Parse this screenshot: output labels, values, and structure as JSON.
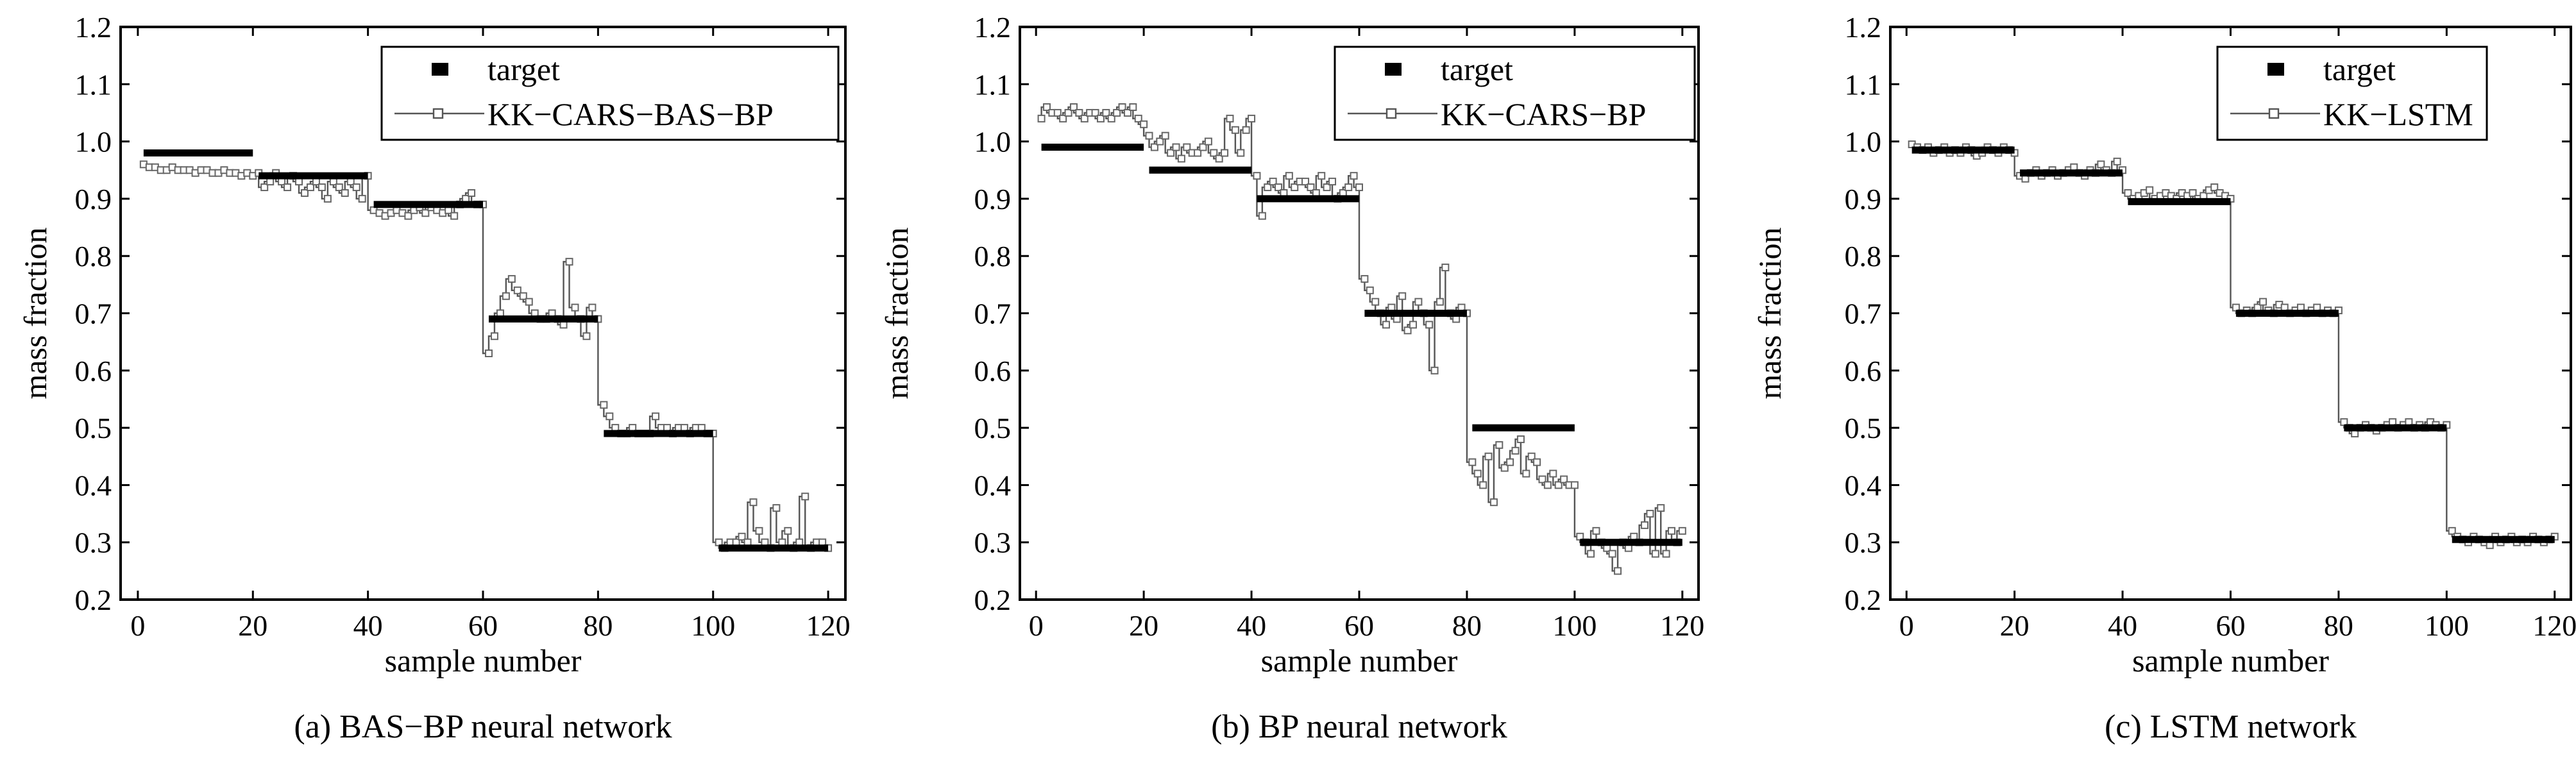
{
  "chart_data": [
    {
      "type": "line",
      "caption": "(a) BAS−BP neural network",
      "xlabel": "sample number",
      "ylabel": "mass fraction",
      "xlim": [
        -3,
        123
      ],
      "ylim": [
        0.2,
        1.2
      ],
      "x_ticks": [
        "0",
        "20",
        "40",
        "60",
        "80",
        "100",
        "120"
      ],
      "y_ticks": [
        "0.2",
        "0.3",
        "0.4",
        "0.5",
        "0.6",
        "0.7",
        "0.8",
        "0.9",
        "1.0",
        "1.1",
        "1.2"
      ],
      "legend_position": "top-right",
      "grid": false,
      "series": [
        {
          "name": "target",
          "style": "thick-segments",
          "segments": [
            {
              "x": [
                1,
                20
              ],
              "y": 0.98
            },
            {
              "x": [
                21,
                40
              ],
              "y": 0.94
            },
            {
              "x": [
                41,
                60
              ],
              "y": 0.89
            },
            {
              "x": [
                61,
                80
              ],
              "y": 0.69
            },
            {
              "x": [
                81,
                100
              ],
              "y": 0.49
            },
            {
              "x": [
                101,
                120
              ],
              "y": 0.29
            }
          ]
        },
        {
          "name": "KK−CARS−BAS−BP",
          "style": "line-open-square",
          "x_start": 1,
          "y": [
            0.96,
            0.955,
            0.955,
            0.95,
            0.95,
            0.955,
            0.95,
            0.95,
            0.95,
            0.945,
            0.95,
            0.95,
            0.945,
            0.945,
            0.95,
            0.945,
            0.945,
            0.94,
            0.945,
            0.94,
            0.945,
            0.92,
            0.93,
            0.945,
            0.93,
            0.92,
            0.94,
            0.93,
            0.91,
            0.92,
            0.93,
            0.92,
            0.9,
            0.93,
            0.92,
            0.91,
            0.93,
            0.92,
            0.9,
            0.94,
            0.88,
            0.875,
            0.87,
            0.875,
            0.88,
            0.875,
            0.87,
            0.88,
            0.885,
            0.875,
            0.885,
            0.88,
            0.875,
            0.88,
            0.87,
            0.89,
            0.9,
            0.91,
            0.89,
            0.89,
            0.63,
            0.66,
            0.7,
            0.73,
            0.76,
            0.74,
            0.73,
            0.72,
            0.7,
            0.69,
            0.69,
            0.7,
            0.69,
            0.68,
            0.79,
            0.71,
            0.69,
            0.66,
            0.71,
            0.69,
            0.54,
            0.52,
            0.5,
            0.49,
            0.49,
            0.5,
            0.49,
            0.49,
            0.49,
            0.52,
            0.5,
            0.5,
            0.49,
            0.5,
            0.5,
            0.49,
            0.5,
            0.5,
            0.49,
            0.49,
            0.3,
            0.29,
            0.3,
            0.3,
            0.31,
            0.3,
            0.37,
            0.32,
            0.3,
            0.29,
            0.36,
            0.3,
            0.32,
            0.29,
            0.3,
            0.38,
            0.29,
            0.3,
            0.3,
            0.29
          ]
        }
      ]
    },
    {
      "type": "line",
      "caption": "(b) BP neural network",
      "xlabel": "sample number",
      "ylabel": "mass fraction",
      "xlim": [
        -3,
        123
      ],
      "ylim": [
        0.2,
        1.2
      ],
      "x_ticks": [
        "0",
        "20",
        "40",
        "60",
        "80",
        "100",
        "120"
      ],
      "y_ticks": [
        "0.2",
        "0.3",
        "0.4",
        "0.5",
        "0.6",
        "0.7",
        "0.8",
        "0.9",
        "1.0",
        "1.1",
        "1.2"
      ],
      "legend_position": "top-right",
      "grid": false,
      "series": [
        {
          "name": "target",
          "style": "thick-segments",
          "segments": [
            {
              "x": [
                1,
                20
              ],
              "y": 0.99
            },
            {
              "x": [
                21,
                40
              ],
              "y": 0.95
            },
            {
              "x": [
                41,
                60
              ],
              "y": 0.9
            },
            {
              "x": [
                61,
                80
              ],
              "y": 0.7
            },
            {
              "x": [
                81,
                100
              ],
              "y": 0.5
            },
            {
              "x": [
                101,
                120
              ],
              "y": 0.3
            }
          ]
        },
        {
          "name": "KK−CARS−BP",
          "style": "line-open-square",
          "x_start": 1,
          "y": [
            1.04,
            1.06,
            1.05,
            1.05,
            1.04,
            1.05,
            1.06,
            1.05,
            1.04,
            1.05,
            1.05,
            1.04,
            1.05,
            1.04,
            1.05,
            1.06,
            1.05,
            1.06,
            1.04,
            1.03,
            1.01,
            0.99,
            1.0,
            1.01,
            0.98,
            0.99,
            0.97,
            0.99,
            0.98,
            0.98,
            0.99,
            1.0,
            0.98,
            0.97,
            0.98,
            1.04,
            1.02,
            0.98,
            1.02,
            1.04,
            0.94,
            0.87,
            0.92,
            0.93,
            0.92,
            0.91,
            0.94,
            0.92,
            0.93,
            0.93,
            0.92,
            0.91,
            0.94,
            0.92,
            0.93,
            0.9,
            0.91,
            0.92,
            0.94,
            0.92,
            0.76,
            0.74,
            0.72,
            0.7,
            0.68,
            0.71,
            0.69,
            0.73,
            0.67,
            0.68,
            0.72,
            0.7,
            0.68,
            0.6,
            0.72,
            0.78,
            0.7,
            0.69,
            0.71,
            0.7,
            0.44,
            0.42,
            0.4,
            0.45,
            0.37,
            0.47,
            0.43,
            0.44,
            0.46,
            0.48,
            0.42,
            0.45,
            0.44,
            0.41,
            0.4,
            0.42,
            0.4,
            0.41,
            0.4,
            0.4,
            0.31,
            0.3,
            0.28,
            0.32,
            0.3,
            0.29,
            0.28,
            0.25,
            0.3,
            0.29,
            0.31,
            0.3,
            0.33,
            0.35,
            0.28,
            0.36,
            0.28,
            0.32,
            0.3,
            0.32
          ]
        }
      ]
    },
    {
      "type": "line",
      "caption": "(c) LSTM network",
      "xlabel": "sample number",
      "ylabel": "mass fraction",
      "xlim": [
        -3,
        123
      ],
      "ylim": [
        0.2,
        1.2
      ],
      "x_ticks": [
        "0",
        "20",
        "40",
        "60",
        "80",
        "100",
        "120"
      ],
      "y_ticks": [
        "0.2",
        "0.3",
        "0.4",
        "0.5",
        "0.6",
        "0.7",
        "0.8",
        "0.9",
        "1.0",
        "1.1",
        "1.2"
      ],
      "legend_position": "top-right",
      "grid": false,
      "series": [
        {
          "name": "target",
          "style": "thick-segments",
          "segments": [
            {
              "x": [
                1,
                20
              ],
              "y": 0.985
            },
            {
              "x": [
                21,
                40
              ],
              "y": 0.945
            },
            {
              "x": [
                41,
                60
              ],
              "y": 0.895
            },
            {
              "x": [
                61,
                80
              ],
              "y": 0.7
            },
            {
              "x": [
                81,
                100
              ],
              "y": 0.5
            },
            {
              "x": [
                101,
                120
              ],
              "y": 0.305
            }
          ]
        },
        {
          "name": "KK−LSTM",
          "style": "line-open-square",
          "x_start": 1,
          "y": [
            0.995,
            0.99,
            0.985,
            0.99,
            0.98,
            0.985,
            0.99,
            0.98,
            0.985,
            0.98,
            0.99,
            0.985,
            0.975,
            0.98,
            0.99,
            0.985,
            0.98,
            0.99,
            0.985,
            0.98,
            0.94,
            0.935,
            0.945,
            0.95,
            0.94,
            0.945,
            0.95,
            0.94,
            0.945,
            0.95,
            0.955,
            0.945,
            0.94,
            0.95,
            0.945,
            0.96,
            0.95,
            0.945,
            0.965,
            0.95,
            0.91,
            0.9,
            0.905,
            0.91,
            0.915,
            0.9,
            0.905,
            0.91,
            0.905,
            0.9,
            0.91,
            0.905,
            0.91,
            0.9,
            0.905,
            0.915,
            0.92,
            0.91,
            0.905,
            0.9,
            0.71,
            0.7,
            0.705,
            0.7,
            0.71,
            0.72,
            0.705,
            0.7,
            0.715,
            0.71,
            0.7,
            0.705,
            0.71,
            0.7,
            0.705,
            0.71,
            0.7,
            0.705,
            0.7,
            0.705,
            0.51,
            0.5,
            0.49,
            0.5,
            0.505,
            0.5,
            0.495,
            0.5,
            0.505,
            0.51,
            0.5,
            0.505,
            0.51,
            0.5,
            0.505,
            0.5,
            0.51,
            0.505,
            0.5,
            0.505,
            0.32,
            0.31,
            0.305,
            0.3,
            0.31,
            0.305,
            0.3,
            0.295,
            0.31,
            0.3,
            0.305,
            0.31,
            0.3,
            0.305,
            0.3,
            0.31,
            0.305,
            0.3,
            0.305,
            0.31
          ]
        }
      ]
    }
  ]
}
